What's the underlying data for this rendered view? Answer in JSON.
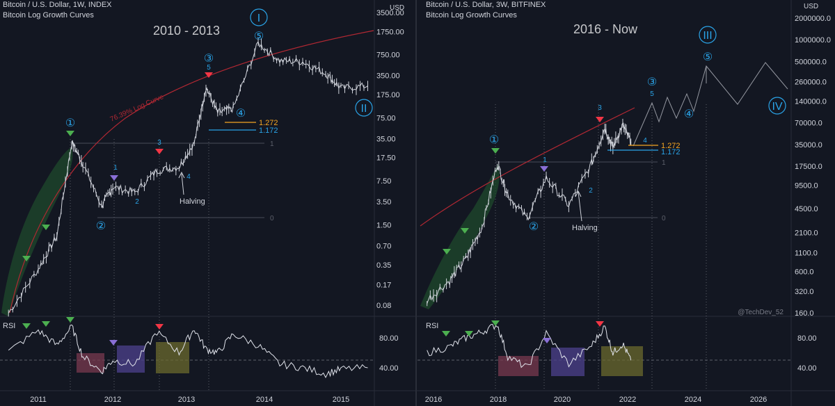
{
  "colors": {
    "background": "#131722",
    "grid_dotted": "#5d606b",
    "price": "#d1d4dc",
    "log_curve": "#b22833",
    "fib_1272": "#f5a623",
    "fib_1172": "#2aa4e8",
    "wave_circle": "#2aa4e8",
    "peak_marker_green": "#4caf50",
    "marker_purple": "#8a6fd6",
    "marker_red": "#f23645",
    "box_red": "#7a3a4f",
    "box_purple": "#4a3f87",
    "box_olive": "#6b6a2e",
    "band_green": "#1f4a2c"
  },
  "left_panel": {
    "header_title": "Bitcoin / U.S. Dollar, 1W, INDEX",
    "header_subtitle": "Bitcoin Log Growth Curves",
    "period_label": "2010 - 2013",
    "price_axis_unit": "USD",
    "price_ticks": [
      "3500.00",
      "1750.00",
      "750.00",
      "350.00",
      "175.00",
      "75.00",
      "35.00",
      "17.50",
      "7.50",
      "3.50",
      "1.50",
      "0.70",
      "0.35",
      "0.17",
      "0.08"
    ],
    "time_ticks": [
      "2011",
      "2012",
      "2013",
      "2014",
      "2015"
    ],
    "curve_label": "76.39% Log Curve",
    "fib_levels": [
      {
        "label": "1.272",
        "value": 1.272
      },
      {
        "label": "1.172",
        "value": 1.172
      },
      {
        "label": "1",
        "value": 1
      },
      {
        "label": "0",
        "value": 0
      }
    ],
    "cycle_waves": [
      "I",
      "II"
    ],
    "primary_waves": [
      "①",
      "②",
      "③",
      "④",
      "⑤"
    ],
    "minor_waves": [
      "1",
      "2",
      "3",
      "4",
      "5"
    ],
    "halving_label": "Halving",
    "rsi_label": "RSI",
    "rsi_ticks": [
      "80.00",
      "40.00"
    ]
  },
  "right_panel": {
    "header_title": "Bitcoin / U.S. Dollar, 3W, BITFINEX",
    "header_subtitle": "Bitcoin Log Growth Curves",
    "period_label": "2016 - Now",
    "price_axis_unit": "USD",
    "price_ticks": [
      "2000000.0",
      "1000000.0",
      "500000.0",
      "260000.0",
      "140000.0",
      "70000.0",
      "35000.0",
      "17500.0",
      "9500.0",
      "4500.0",
      "2100.0",
      "1100.0",
      "600.0",
      "320.0",
      "160.0"
    ],
    "time_ticks": [
      "2016",
      "2018",
      "2020",
      "2022",
      "2024",
      "2026"
    ],
    "fib_levels": [
      {
        "label": "1.272",
        "value": 1.272
      },
      {
        "label": "1.172",
        "value": 1.172
      },
      {
        "label": "1",
        "value": 1
      },
      {
        "label": "0",
        "value": 0
      }
    ],
    "cycle_waves": [
      "III",
      "IV"
    ],
    "primary_waves": [
      "①",
      "②",
      "③",
      "④",
      "⑤"
    ],
    "minor_waves": [
      "1",
      "2",
      "3",
      "4",
      "5"
    ],
    "halving_label": "Halving",
    "rsi_label": "RSI",
    "rsi_ticks": [
      "80.00",
      "40.00"
    ],
    "watermark": "@TechDev_52"
  },
  "chart_data": [
    {
      "type": "line",
      "title": "Bitcoin / U.S. Dollar, 1W, INDEX",
      "subtitle": "Bitcoin Log Growth Curves",
      "scale": "log",
      "x": [
        2010.6,
        2011.0,
        2011.25,
        2011.45,
        2011.6,
        2011.85,
        2012.0,
        2012.3,
        2012.6,
        2012.9,
        2013.1,
        2013.25,
        2013.4,
        2013.6,
        2013.92,
        2014.2,
        2014.5,
        2014.8,
        2015.0,
        2015.35
      ],
      "series": [
        {
          "values": [
            0.06,
            0.3,
            1.0,
            31,
            14,
            3.0,
            6.0,
            4.9,
            11,
            12.5,
            30,
            230,
            90,
            105,
            1150,
            600,
            580,
            380,
            220,
            240
          ]
        }
      ],
      "ylim": [
        0.06,
        4000
      ],
      "rsi": [
        62,
        90,
        70,
        95,
        55,
        35,
        50,
        45,
        88,
        60,
        92,
        65,
        60,
        85,
        70,
        45,
        40,
        32,
        38,
        40
      ]
    },
    {
      "type": "line",
      "title": "Bitcoin / U.S. Dollar, 3W, BITFINEX",
      "subtitle": "Bitcoin Log Growth Curves",
      "scale": "log",
      "x": [
        2015.8,
        2016.5,
        2017.0,
        2017.5,
        2017.97,
        2018.3,
        2018.9,
        2019.5,
        2020.2,
        2020.9,
        2021.3,
        2021.55,
        2021.85,
        2022.1
      ],
      "series": [
        {
          "values": [
            240,
            450,
            900,
            2500,
            19000,
            7000,
            3300,
            12000,
            5000,
            19000,
            60000,
            32000,
            65000,
            38000
          ]
        }
      ],
      "ylim": [
        150,
        2200000
      ],
      "rsi": [
        60,
        68,
        80,
        88,
        98,
        55,
        40,
        86,
        45,
        70,
        95,
        60,
        72,
        50
      ]
    }
  ]
}
